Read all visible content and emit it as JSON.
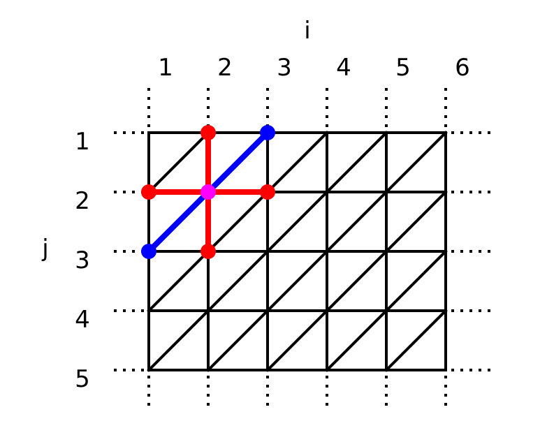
{
  "axes": {
    "i_label": "i",
    "j_label": "j",
    "i_ticks": [
      "1",
      "2",
      "3",
      "4",
      "5",
      "6"
    ],
    "j_ticks": [
      "1",
      "2",
      "3",
      "4",
      "5"
    ]
  },
  "grid": {
    "columns": 6,
    "rows": 5,
    "diagonal_direction": "lower-left to upper-right",
    "extends_beyond_edges": true,
    "line_color": "#000000"
  },
  "stencil": {
    "center": {
      "i": 2,
      "j": 2,
      "color": "#ff00ff"
    },
    "red_neighbors": [
      {
        "i": 2,
        "j": 1
      },
      {
        "i": 1,
        "j": 2
      },
      {
        "i": 3,
        "j": 2
      },
      {
        "i": 2,
        "j": 3
      }
    ],
    "red_color": "#ff0000",
    "blue_neighbors": [
      {
        "i": 3,
        "j": 1
      },
      {
        "i": 1,
        "j": 3
      }
    ],
    "blue_color": "#0000ff"
  }
}
